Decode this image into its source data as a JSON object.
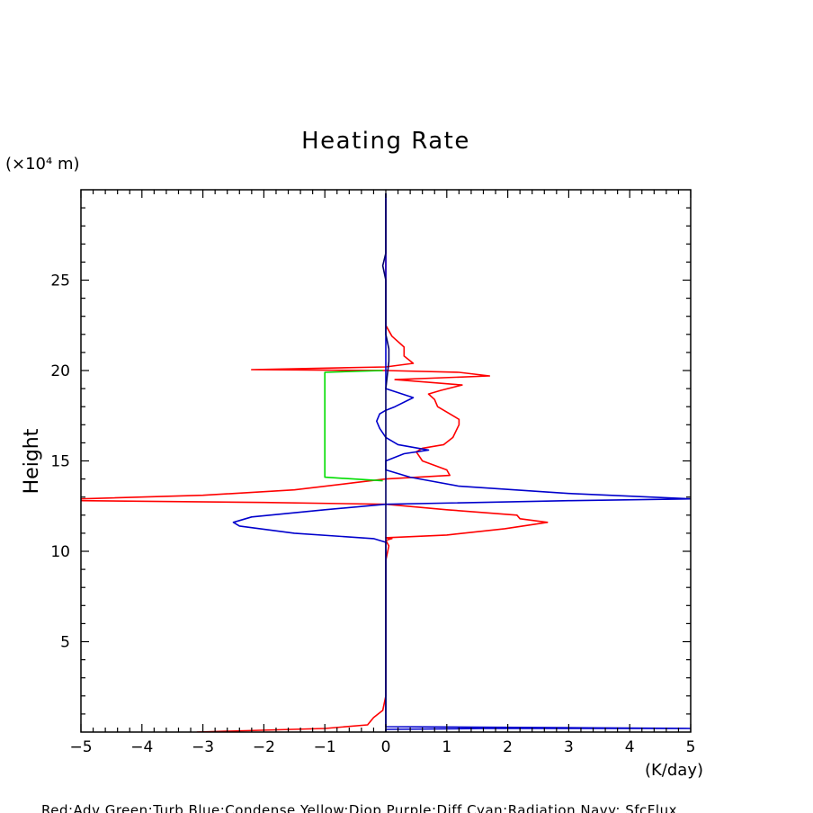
{
  "chart_data": {
    "type": "line",
    "title": "Heating Rate",
    "ylabel": "Height",
    "yunit_label": "(×10⁴ m)",
    "xunit_label": "(K/day)",
    "xlim": [
      -5,
      5
    ],
    "ylim": [
      0,
      30
    ],
    "x_ticks": [
      -5,
      -4,
      -3,
      -2,
      -1,
      0,
      1,
      2,
      3,
      4,
      5
    ],
    "x_tick_labels": [
      "−5",
      "−4",
      "−3",
      "−2",
      "−1",
      "0",
      "1",
      "2",
      "3",
      "4",
      "5"
    ],
    "y_ticks": [
      5,
      10,
      15,
      20,
      25
    ],
    "y_tick_labels": [
      "5",
      "10",
      "15",
      "20",
      "25"
    ],
    "legend_text": "Red:Adv Green:Turb Blue:Condense Yellow:Diop Purple:Diff Cyan:Radiation Navy: SfcFlux",
    "series": [
      {
        "name": "Adv",
        "color": "#ff0000",
        "points": [
          [
            -3.1,
            0.0
          ],
          [
            -1.0,
            0.2
          ],
          [
            -0.3,
            0.4
          ],
          [
            -0.2,
            0.8
          ],
          [
            -0.05,
            1.2
          ],
          [
            0.0,
            2.0
          ],
          [
            0.0,
            5.0
          ],
          [
            0.0,
            8.0
          ],
          [
            0.0,
            9.5
          ],
          [
            0.05,
            10.3
          ],
          [
            0.0,
            10.6
          ],
          [
            0.1,
            10.7
          ],
          [
            0.0,
            10.75
          ],
          [
            1.0,
            10.9
          ],
          [
            1.95,
            11.25
          ],
          [
            2.65,
            11.6
          ],
          [
            2.2,
            11.8
          ],
          [
            2.15,
            12.0
          ],
          [
            1.0,
            12.3
          ],
          [
            0.0,
            12.6
          ],
          [
            -2.0,
            12.7
          ],
          [
            -5.0,
            12.8
          ],
          [
            -5.0,
            12.9
          ],
          [
            -3.0,
            13.1
          ],
          [
            -1.5,
            13.4
          ],
          [
            -0.5,
            13.8
          ],
          [
            0.0,
            14.0
          ],
          [
            1.05,
            14.2
          ],
          [
            1.0,
            14.5
          ],
          [
            0.6,
            15.0
          ],
          [
            0.5,
            15.5
          ],
          [
            0.6,
            15.7
          ],
          [
            0.95,
            15.9
          ],
          [
            1.1,
            16.3
          ],
          [
            1.2,
            17.0
          ],
          [
            1.2,
            17.3
          ],
          [
            1.0,
            17.7
          ],
          [
            0.85,
            18.0
          ],
          [
            0.8,
            18.4
          ],
          [
            0.7,
            18.7
          ],
          [
            0.9,
            18.9
          ],
          [
            1.25,
            19.2
          ],
          [
            0.15,
            19.5
          ],
          [
            1.7,
            19.7
          ],
          [
            1.2,
            19.9
          ],
          [
            0.0,
            20.0
          ],
          [
            -2.2,
            20.05
          ],
          [
            0.0,
            20.2
          ],
          [
            0.45,
            20.4
          ],
          [
            0.3,
            20.8
          ],
          [
            0.3,
            21.3
          ],
          [
            0.1,
            21.9
          ],
          [
            0.0,
            22.5
          ],
          [
            0.0,
            24.0
          ],
          [
            0.0,
            26.0
          ],
          [
            0.0,
            28.0
          ],
          [
            0.0,
            29.5
          ]
        ]
      },
      {
        "name": "Turb",
        "color": "#00dd00",
        "points": [
          [
            -0.05,
            13.9
          ],
          [
            -1.0,
            14.1
          ],
          [
            -1.0,
            19.9
          ],
          [
            -0.05,
            20.0
          ]
        ]
      },
      {
        "name": "Condense",
        "color": "#0000cc",
        "points": [
          [
            0.0,
            0.0
          ],
          [
            0.0,
            0.15
          ],
          [
            1.6,
            0.2
          ],
          [
            5.0,
            0.2
          ],
          [
            0.0,
            0.3
          ],
          [
            0.0,
            5.0
          ],
          [
            0.0,
            10.5
          ],
          [
            -0.2,
            10.7
          ],
          [
            -1.5,
            11.0
          ],
          [
            -2.4,
            11.4
          ],
          [
            -2.5,
            11.6
          ],
          [
            -2.2,
            11.9
          ],
          [
            -1.0,
            12.3
          ],
          [
            0.0,
            12.6
          ],
          [
            3.0,
            12.8
          ],
          [
            5.0,
            12.9
          ],
          [
            3.0,
            13.2
          ],
          [
            1.2,
            13.6
          ],
          [
            0.4,
            14.1
          ],
          [
            0.0,
            14.5
          ],
          [
            0.0,
            15.0
          ],
          [
            0.3,
            15.4
          ],
          [
            0.7,
            15.6
          ],
          [
            0.2,
            15.9
          ],
          [
            0.0,
            16.3
          ],
          [
            -0.1,
            16.8
          ],
          [
            -0.15,
            17.2
          ],
          [
            -0.1,
            17.6
          ],
          [
            0.0,
            17.8
          ],
          [
            0.15,
            18.0
          ],
          [
            0.45,
            18.5
          ],
          [
            0.0,
            19.0
          ],
          [
            0.0,
            19.8
          ],
          [
            0.0,
            20.0
          ],
          [
            0.0,
            20.5
          ],
          [
            0.0,
            24.0
          ],
          [
            0.0,
            28.0
          ],
          [
            0.0,
            29.8
          ]
        ]
      },
      {
        "name": "SfcFlux",
        "color": "#000066",
        "points": [
          [
            0.0,
            0.0
          ],
          [
            0.0,
            2.0
          ],
          [
            0.0,
            10.0
          ],
          [
            0.0,
            19.0
          ],
          [
            0.05,
            20.5
          ],
          [
            0.05,
            21.2
          ],
          [
            0.0,
            22.0
          ],
          [
            0.0,
            25.0
          ],
          [
            -0.05,
            25.8
          ],
          [
            0.0,
            26.5
          ],
          [
            0.0,
            29.8
          ]
        ]
      }
    ]
  }
}
